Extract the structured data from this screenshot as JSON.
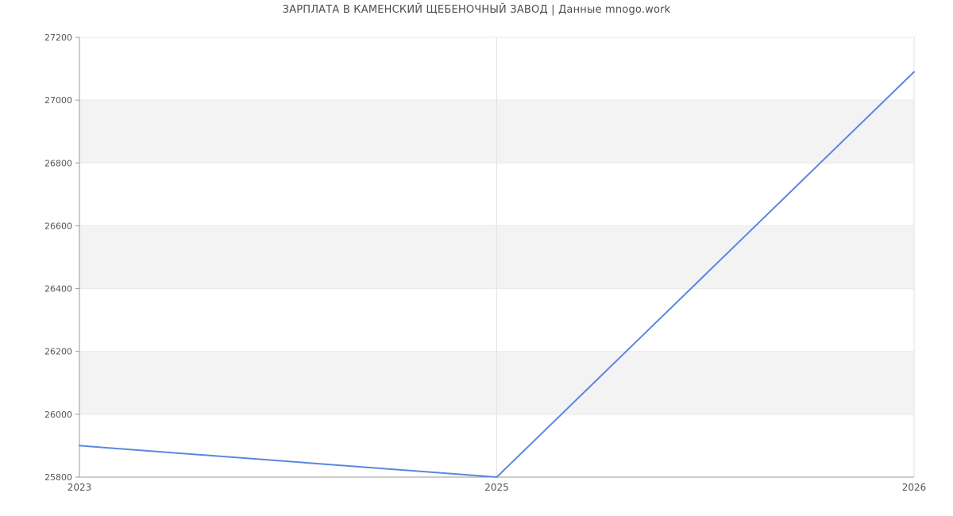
{
  "chart_data": {
    "type": "line",
    "title": "ЗАРПЛАТА В КАМЕНСКИЙ ЩЕБЕНОЧНЫЙ ЗАВОД | Данные mnogo.work",
    "categories": [
      "2023",
      "2025",
      "2026"
    ],
    "series": [
      {
        "name": "Зарплата",
        "values": [
          25900,
          25800,
          27090
        ]
      }
    ],
    "xlabel": "",
    "ylabel": "",
    "ylim": [
      25800,
      27200
    ],
    "ytick_step": 200,
    "ytick_labels": [
      "25800",
      "26000",
      "26200",
      "26400",
      "26600",
      "26800",
      "27000",
      "27200"
    ],
    "grid": "horizontal ticks with alternating shaded bands, vertical gridlines at category positions",
    "legend_position": "none",
    "colors": {
      "line": "#5b87e0",
      "band": "#f3f3f3",
      "gridline_h": "#e9e9e9",
      "gridline_v": "#e2e2e2",
      "axis": "#999999",
      "tick_label": "#555555",
      "title": "#4d4d4d",
      "background": "#ffffff"
    }
  }
}
